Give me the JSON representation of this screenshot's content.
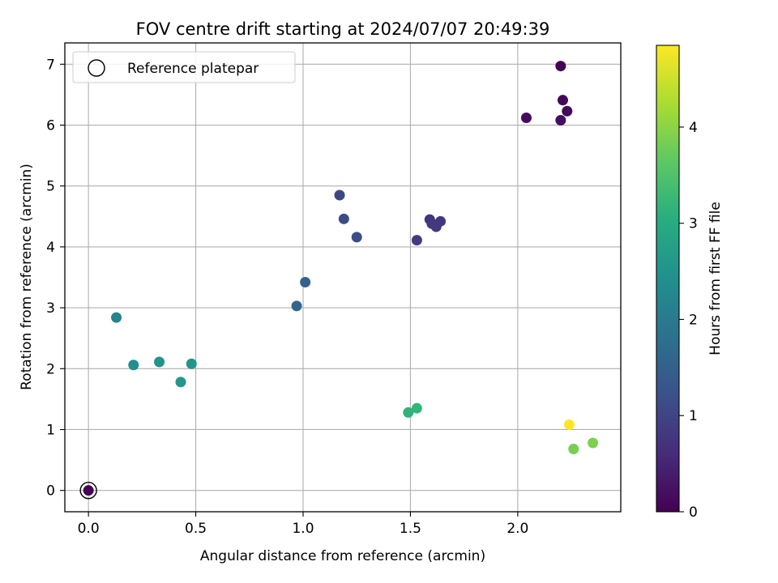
{
  "chart_data": {
    "type": "scatter",
    "title": "FOV centre drift starting at 2024/07/07 20:49:39",
    "xlabel": "Angular distance from reference (arcmin)",
    "ylabel": "Rotation from reference (arcmin)",
    "xlim": [
      -0.11,
      2.48
    ],
    "ylim": [
      -0.35,
      7.35
    ],
    "xticks": [
      0.0,
      0.5,
      1.0,
      1.5,
      2.0
    ],
    "xtick_labels": [
      "0.0",
      "0.5",
      "1.0",
      "1.5",
      "2.0"
    ],
    "yticks": [
      0,
      1,
      2,
      3,
      4,
      5,
      6,
      7
    ],
    "ytick_labels": [
      "0",
      "1",
      "2",
      "3",
      "4",
      "5",
      "6",
      "7"
    ],
    "grid": true,
    "legend": {
      "placement": "top-left",
      "entries": [
        "Reference platepar"
      ]
    },
    "colormap": "viridis",
    "colorbar": {
      "label": "Hours from first FF file",
      "range": [
        0,
        4.85
      ],
      "ticks": [
        0,
        1,
        2,
        3,
        4
      ],
      "tick_labels": [
        "0",
        "1",
        "2",
        "3",
        "4"
      ]
    },
    "reference": {
      "x": 0.0,
      "y": 0.0
    },
    "points": [
      {
        "x": 2.2,
        "y": 6.97,
        "hours": 0.0
      },
      {
        "x": 2.21,
        "y": 6.41,
        "hours": 0.05
      },
      {
        "x": 2.23,
        "y": 6.23,
        "hours": 0.1
      },
      {
        "x": 2.04,
        "y": 6.12,
        "hours": 0.15
      },
      {
        "x": 2.2,
        "y": 6.08,
        "hours": 0.2
      },
      {
        "x": 1.59,
        "y": 4.45,
        "hours": 0.75
      },
      {
        "x": 1.64,
        "y": 4.42,
        "hours": 0.78
      },
      {
        "x": 1.6,
        "y": 4.38,
        "hours": 0.8
      },
      {
        "x": 1.62,
        "y": 4.33,
        "hours": 0.82
      },
      {
        "x": 1.53,
        "y": 4.11,
        "hours": 0.85
      },
      {
        "x": 1.17,
        "y": 4.85,
        "hours": 1.05
      },
      {
        "x": 1.19,
        "y": 4.46,
        "hours": 1.1
      },
      {
        "x": 1.25,
        "y": 4.16,
        "hours": 1.15
      },
      {
        "x": 1.01,
        "y": 3.42,
        "hours": 1.55
      },
      {
        "x": 0.97,
        "y": 3.03,
        "hours": 1.6
      },
      {
        "x": 0.13,
        "y": 2.84,
        "hours": 2.2
      },
      {
        "x": 0.21,
        "y": 2.06,
        "hours": 2.4
      },
      {
        "x": 0.33,
        "y": 2.11,
        "hours": 2.5
      },
      {
        "x": 0.48,
        "y": 2.08,
        "hours": 2.55
      },
      {
        "x": 0.43,
        "y": 1.78,
        "hours": 2.6
      },
      {
        "x": 1.49,
        "y": 1.28,
        "hours": 3.15
      },
      {
        "x": 1.53,
        "y": 1.35,
        "hours": 3.2
      },
      {
        "x": 2.26,
        "y": 0.68,
        "hours": 3.85
      },
      {
        "x": 2.35,
        "y": 0.78,
        "hours": 3.9
      },
      {
        "x": 2.24,
        "y": 1.08,
        "hours": 4.85
      },
      {
        "x": 0.0,
        "y": 0.0,
        "hours": 0.0
      }
    ]
  }
}
